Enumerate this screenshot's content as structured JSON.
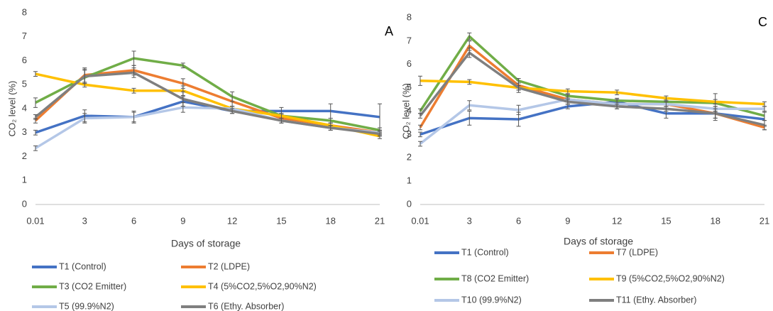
{
  "chart_data": [
    {
      "type": "line",
      "panel_label": "A",
      "x_label": "Days of storage",
      "y_label": "CO₂ level (%)",
      "categories": [
        "0.01",
        "3",
        "6",
        "9",
        "12",
        "15",
        "18",
        "21"
      ],
      "ylim": [
        0,
        8
      ],
      "yticks": [
        0,
        1,
        2,
        3,
        4,
        5,
        6,
        7,
        8
      ],
      "grid": false,
      "series": [
        {
          "name": "T1 (Control)",
          "color": "#4472c4",
          "values": [
            3.0,
            3.7,
            3.65,
            4.3,
            3.9,
            3.9,
            3.9,
            3.65
          ],
          "errors": [
            0.1,
            0.25,
            0.25,
            0.2,
            0.1,
            0.15,
            0.3,
            0.55
          ]
        },
        {
          "name": "T2 (LDPE)",
          "color": "#ed7d31",
          "values": [
            3.5,
            5.4,
            5.6,
            5.05,
            4.3,
            3.6,
            3.3,
            3.0
          ],
          "errors": [
            0.1,
            0.3,
            0.2,
            0.2,
            0.2,
            0.1,
            0.1,
            0.1
          ]
        },
        {
          "name": "T3 (CO2 Emitter)",
          "color": "#70ad47",
          "values": [
            4.25,
            5.3,
            6.1,
            5.8,
            4.5,
            3.7,
            3.5,
            3.1
          ],
          "errors": [
            0.2,
            0.3,
            0.3,
            0.1,
            0.2,
            0.1,
            0.1,
            0.1
          ]
        },
        {
          "name": "T4 (5%CO2,5%O2,90%N2)",
          "color": "#ffc000",
          "values": [
            5.45,
            5.0,
            4.75,
            4.75,
            4.0,
            3.7,
            3.3,
            2.85
          ],
          "errors": [
            0.1,
            0.1,
            0.1,
            0.2,
            0.1,
            0.1,
            0.1,
            0.1
          ]
        },
        {
          "name": "T5 (99.9%N2)",
          "color": "#b4c7e7",
          "values": [
            2.35,
            3.6,
            3.65,
            4.05,
            4.0,
            3.5,
            3.2,
            3.0
          ],
          "errors": [
            0.1,
            0.2,
            0.2,
            0.2,
            0.1,
            0.1,
            0.1,
            0.1
          ]
        },
        {
          "name": "T6 (Ethy. Absorber)",
          "color": "#7f7f7f",
          "values": [
            3.65,
            5.35,
            5.5,
            4.4,
            3.9,
            3.5,
            3.2,
            2.95
          ],
          "errors": [
            0.1,
            0.3,
            0.2,
            0.3,
            0.1,
            0.1,
            0.1,
            0.1
          ]
        }
      ]
    },
    {
      "type": "line",
      "panel_label": "C",
      "x_label": "Days of storage",
      "y_label": "CO₂ level (%)",
      "categories": [
        "0.01",
        "3",
        "6",
        "9",
        "12",
        "15",
        "18",
        "21"
      ],
      "ylim": [
        0,
        8
      ],
      "yticks": [
        0,
        1,
        2,
        3,
        4,
        5,
        6,
        7,
        8
      ],
      "grid": false,
      "series": [
        {
          "name": "T1 (Control)",
          "color": "#4472c4",
          "values": [
            3.0,
            3.7,
            3.65,
            4.2,
            4.4,
            3.9,
            3.9,
            3.65
          ],
          "errors": [
            0.1,
            0.3,
            0.3,
            0.1,
            0.1,
            0.2,
            0.3,
            0.3
          ]
        },
        {
          "name": "T7 (LDPE)",
          "color": "#ed7d31",
          "values": [
            3.3,
            6.8,
            5.1,
            4.5,
            4.3,
            4.3,
            3.9,
            3.3
          ],
          "errors": [
            0.1,
            0.2,
            0.2,
            0.1,
            0.1,
            0.1,
            0.2,
            0.1
          ]
        },
        {
          "name": "T8 (CO2 Emitter)",
          "color": "#70ad47",
          "values": [
            4.0,
            7.2,
            5.3,
            4.65,
            4.45,
            4.4,
            4.35,
            3.8
          ],
          "errors": [
            0.1,
            0.15,
            0.1,
            0.1,
            0.1,
            0.1,
            0.4,
            0.2
          ]
        },
        {
          "name": "T9 (5%CO2,5%O2,90%N2)",
          "color": "#ffc000",
          "values": [
            5.3,
            5.25,
            5.0,
            4.85,
            4.8,
            4.55,
            4.4,
            4.3
          ],
          "errors": [
            0.2,
            0.1,
            0.1,
            0.1,
            0.1,
            0.1,
            0.1,
            0.1
          ]
        },
        {
          "name": "T10 (99.9%N2)",
          "color": "#b4c7e7",
          "values": [
            2.6,
            4.25,
            4.05,
            4.5,
            4.3,
            4.3,
            4.1,
            4.1
          ],
          "errors": [
            0.1,
            0.2,
            0.2,
            0.2,
            0.2,
            0.1,
            0.1,
            0.1
          ]
        },
        {
          "name": "T11 (Ethy. Absorber)",
          "color": "#7f7f7f",
          "values": [
            3.8,
            6.5,
            5.0,
            4.4,
            4.2,
            4.1,
            3.9,
            3.4
          ],
          "errors": [
            0.1,
            0.2,
            0.2,
            0.1,
            0.1,
            0.1,
            0.2,
            0.2
          ]
        }
      ]
    }
  ]
}
